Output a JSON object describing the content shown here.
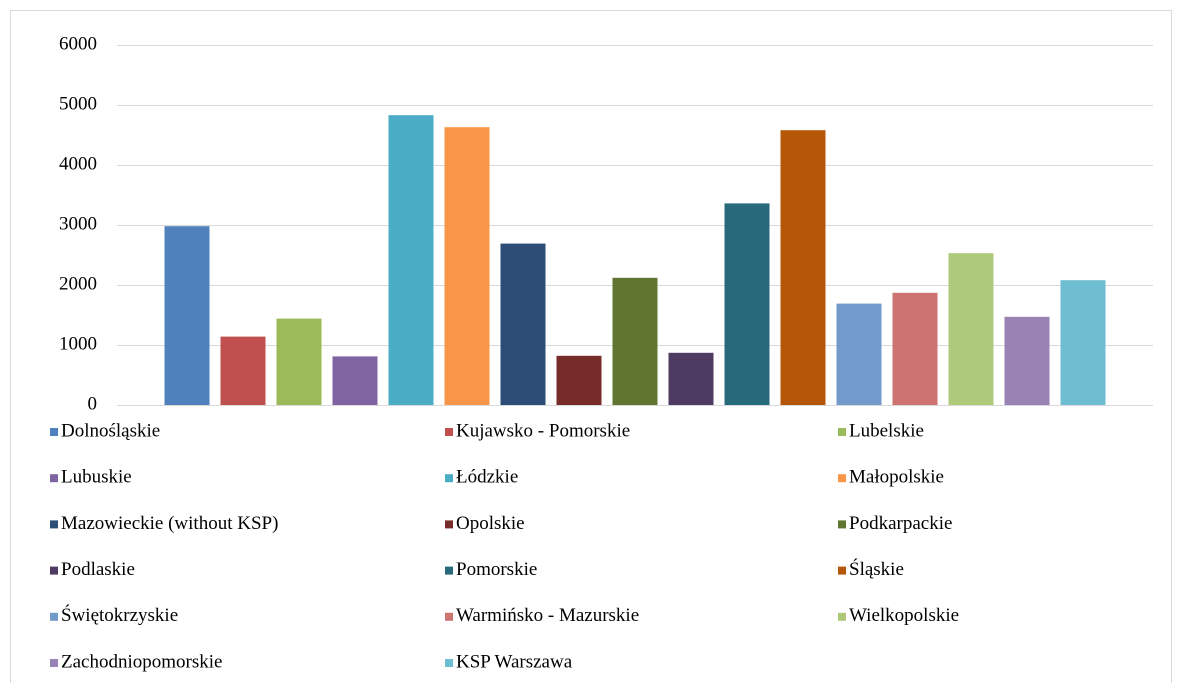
{
  "chart_data": {
    "type": "bar",
    "series": [
      {
        "name": "Dolnośląskie",
        "color": "#4f81bd",
        "values": [
          2980
        ]
      },
      {
        "name": "Kujawsko - Pomorskie",
        "color": "#c0504d",
        "values": [
          1140
        ]
      },
      {
        "name": "Lubelskie",
        "color": "#9bbb59",
        "values": [
          1440
        ]
      },
      {
        "name": "Lubuskie",
        "color": "#8064a2",
        "values": [
          810
        ]
      },
      {
        "name": "Łódzkie",
        "color": "#4bacc6",
        "values": [
          4830
        ]
      },
      {
        "name": "Małopolskie",
        "color": "#f79646",
        "values": [
          4630
        ]
      },
      {
        "name": "Mazowieckie (without KSP)",
        "color": "#2c4d75",
        "values": [
          2690
        ]
      },
      {
        "name": "Opolskie",
        "color": "#772c2a",
        "values": [
          820
        ]
      },
      {
        "name": "Podkarpackie",
        "color": "#5f7530",
        "values": [
          2120
        ]
      },
      {
        "name": "Podlaskie",
        "color": "#4d3b62",
        "values": [
          870
        ]
      },
      {
        "name": "Pomorskie",
        "color": "#276a7c",
        "values": [
          3360
        ]
      },
      {
        "name": "Śląskie",
        "color": "#b65708",
        "values": [
          4580
        ]
      },
      {
        "name": "Świętokrzyskie",
        "color": "#729aca",
        "values": [
          1690
        ]
      },
      {
        "name": "Warmińsko - Mazurskie",
        "color": "#cd7371",
        "values": [
          1870
        ]
      },
      {
        "name": "Wielkopolskie",
        "color": "#afc97a",
        "values": [
          2530
        ]
      },
      {
        "name": "Zachodniopomorskie",
        "color": "#9983b5",
        "values": [
          1470
        ]
      },
      {
        "name": "KSP Warszawa",
        "color": "#6fbdd1",
        "values": [
          2080
        ]
      }
    ],
    "ylim": [
      0,
      6000
    ],
    "yticks": [
      0,
      1000,
      2000,
      3000,
      4000,
      5000,
      6000
    ],
    "grid": true,
    "legend": "bottom"
  }
}
